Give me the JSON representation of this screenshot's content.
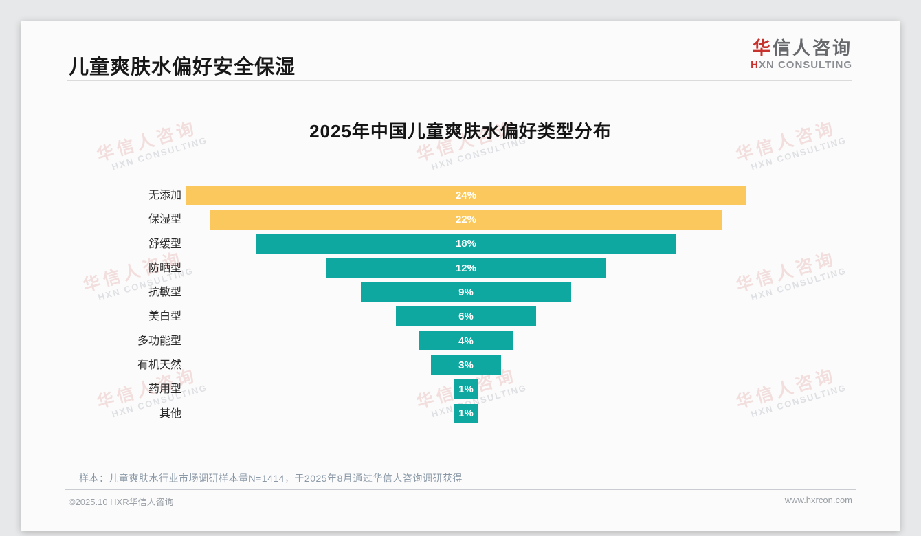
{
  "header": {
    "title": "儿童爽肤水偏好安全保湿"
  },
  "logo": {
    "cn_first": "华",
    "cn_rest": "信人咨询",
    "en_first": "H",
    "en_rest": "XN CONSULTING",
    "accent_color": "#c8322d"
  },
  "watermark": {
    "cn": "华信人咨询",
    "en": "HXN CONSULTING"
  },
  "footnote": "样本：儿童爽肤水行业市场调研样本量N=1414，于2025年8月通过华信人咨询调研获得",
  "footer": {
    "left": "©2025.10 HXR华信人咨询",
    "right": "www.hxrcon.com"
  },
  "chart_data": {
    "type": "bar",
    "subtype": "centered-funnel-horizontal",
    "title": "2025年中国儿童爽肤水偏好类型分布",
    "categories": [
      "无添加",
      "保湿型",
      "舒缓型",
      "防晒型",
      "抗敏型",
      "美白型",
      "多功能型",
      "有机天然",
      "药用型",
      "其他"
    ],
    "values": [
      24,
      22,
      18,
      12,
      9,
      6,
      4,
      3,
      1,
      1
    ],
    "labels": [
      "24%",
      "22%",
      "18%",
      "12%",
      "9%",
      "6%",
      "4%",
      "3%",
      "1%",
      "1%"
    ],
    "unit": "%",
    "xlabel": "",
    "ylabel": "",
    "xlim": [
      0,
      24
    ],
    "grid": false,
    "legend": "none",
    "highlight_count": 2,
    "colors": {
      "highlight": "#FAC85C",
      "default": "#0EA8A0"
    },
    "value_label_color": "#ffffff",
    "background": "#fbfbfb"
  }
}
